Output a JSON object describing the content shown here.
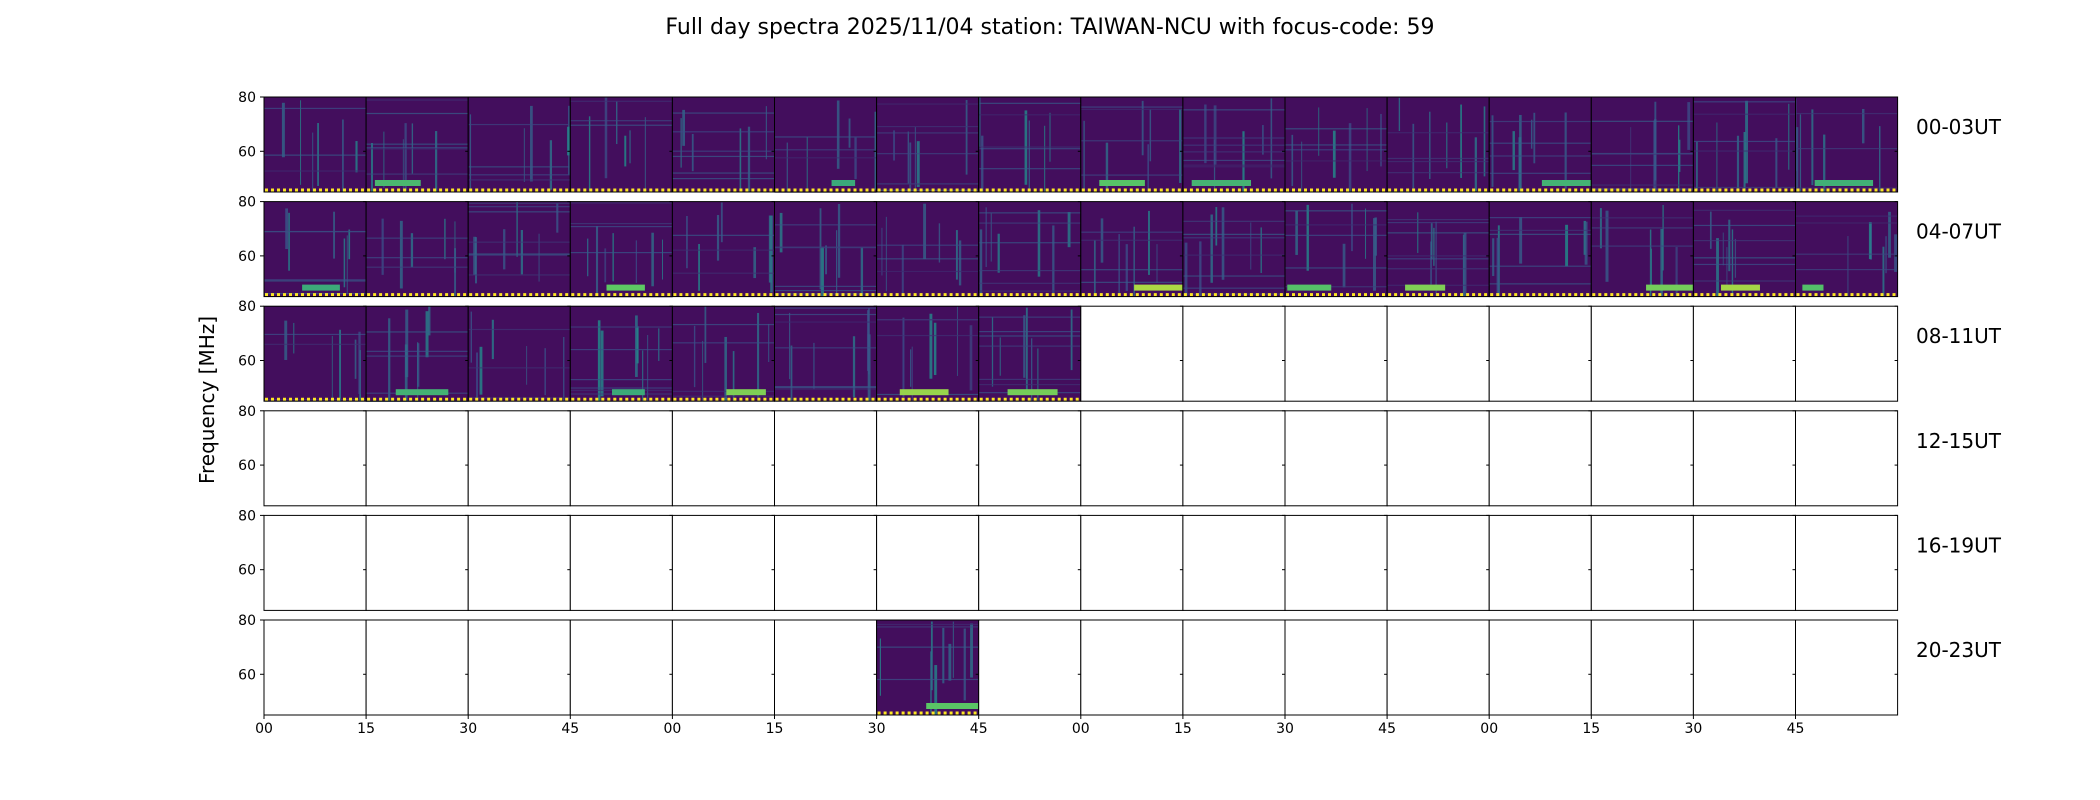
{
  "chart_data": {
    "type": "heatmap",
    "title": "Full day spectra 2025/11/04 station: TAIWAN-NCU with focus-code: 59",
    "ylabel": "Frequency [MHz]",
    "ylim": [
      45,
      80
    ],
    "y_ticks": [
      "80",
      "60"
    ],
    "x_ticks": [
      "00",
      "15",
      "30",
      "45",
      "00",
      "15",
      "30",
      "45",
      "00",
      "15",
      "30",
      "45",
      "00",
      "15",
      "30",
      "45"
    ],
    "rows": [
      {
        "label": "00-03UT",
        "panels": [
          1,
          1,
          1,
          1,
          1,
          1,
          1,
          1,
          1,
          1,
          1,
          1,
          1,
          1,
          1,
          1
        ]
      },
      {
        "label": "04-07UT",
        "panels": [
          1,
          1,
          1,
          1,
          1,
          1,
          1,
          1,
          1,
          1,
          1,
          1,
          1,
          1,
          1,
          1
        ]
      },
      {
        "label": "08-11UT",
        "panels": [
          1,
          1,
          1,
          1,
          1,
          1,
          1,
          1,
          0,
          0,
          0,
          0,
          0,
          0,
          0,
          0
        ]
      },
      {
        "label": "12-15UT",
        "panels": [
          0,
          0,
          0,
          0,
          0,
          0,
          0,
          0,
          0,
          0,
          0,
          0,
          0,
          0,
          0,
          0
        ]
      },
      {
        "label": "16-19UT",
        "panels": [
          0,
          0,
          0,
          0,
          0,
          0,
          0,
          0,
          0,
          0,
          0,
          0,
          0,
          0,
          0,
          0
        ]
      },
      {
        "label": "20-23UT",
        "panels": [
          0,
          0,
          0,
          0,
          0,
          0,
          1,
          0,
          0,
          0,
          0,
          0,
          0,
          0,
          0,
          0
        ]
      }
    ],
    "colormap": [
      "#440154",
      "#3b528b",
      "#21918c",
      "#5ec962",
      "#fde725"
    ],
    "baseline_color": "#fde725"
  }
}
